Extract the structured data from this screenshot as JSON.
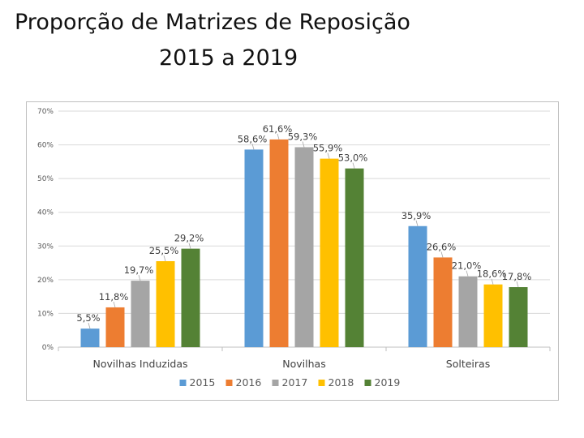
{
  "slide": {
    "title_line1": "Proporção de Matrizes de Reposição",
    "title_line2": "2015 a 2019"
  },
  "chart_data": {
    "type": "bar",
    "title": "",
    "xlabel": "",
    "ylabel": "",
    "ylim": [
      0,
      70
    ],
    "ytick_values": [
      0,
      10,
      20,
      30,
      40,
      50,
      60,
      70
    ],
    "ytick_labels": [
      "0%",
      "10%",
      "20%",
      "30%",
      "40%",
      "50%",
      "60%",
      "70%"
    ],
    "grid": true,
    "legend_position": "bottom",
    "categories": [
      "Novilhas Induzidas",
      "Novilhas",
      "Solteiras"
    ],
    "series": [
      {
        "name": "2015",
        "color": "#5b9bd5",
        "values": [
          5.5,
          58.6,
          35.9
        ],
        "labels": [
          "5,5%",
          "58,6%",
          "35,9%"
        ]
      },
      {
        "name": "2016",
        "color": "#ed7d31",
        "values": [
          11.8,
          61.6,
          26.6
        ],
        "labels": [
          "11,8%",
          "61,6%",
          "26,6%"
        ]
      },
      {
        "name": "2017",
        "color": "#a5a5a5",
        "values": [
          19.7,
          59.3,
          21.0
        ],
        "labels": [
          "19,7%",
          "59,3%",
          "21,0%"
        ]
      },
      {
        "name": "2018",
        "color": "#ffc000",
        "values": [
          25.5,
          55.9,
          18.6
        ],
        "labels": [
          "25,5%",
          "55,9%",
          "18,6%"
        ]
      },
      {
        "name": "2019",
        "color": "#548235",
        "values": [
          29.2,
          53.0,
          17.8
        ],
        "labels": [
          "29,2%",
          "53,0%",
          "17,8%"
        ]
      }
    ]
  }
}
